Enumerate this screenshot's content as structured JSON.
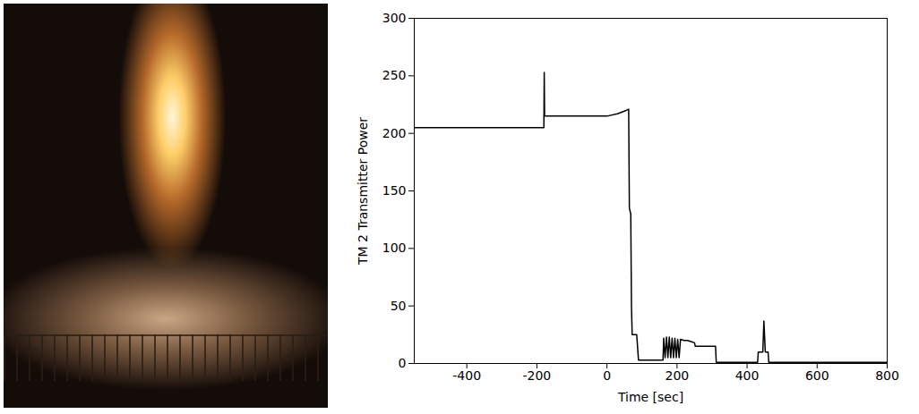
{
  "chart_data": {
    "type": "line",
    "x_label": "Time [sec]",
    "y_label": "TM 2 Transmitter Power",
    "x": [
      -550,
      -180,
      -179,
      -178,
      -100,
      0,
      30,
      55,
      62,
      64,
      68,
      70,
      72,
      85,
      90,
      160,
      162,
      166,
      170,
      174,
      178,
      182,
      186,
      190,
      194,
      198,
      202,
      206,
      210,
      220,
      230,
      240,
      250,
      252,
      310,
      312,
      430,
      432,
      445,
      448,
      452,
      460,
      462,
      800
    ],
    "series": [
      {
        "name": "TM 2 Transmitter Power",
        "color": "#000000",
        "values": [
          205,
          205,
          253,
          215,
          215,
          215,
          217,
          220,
          221,
          135,
          130,
          50,
          25,
          25,
          3,
          3,
          22,
          5,
          23,
          5,
          23,
          5,
          22,
          5,
          22,
          5,
          21,
          5,
          21,
          20,
          20,
          19,
          18,
          15,
          15,
          1,
          1,
          10,
          10,
          37,
          10,
          10,
          1,
          1
        ]
      }
    ],
    "xlim": [
      -550,
      800
    ],
    "xticks": [
      -400,
      -200,
      0,
      200,
      400,
      600,
      800
    ],
    "ylim": [
      0,
      300
    ],
    "yticks": [
      0,
      50,
      100,
      150,
      200,
      250,
      300
    ],
    "grid": false
  }
}
